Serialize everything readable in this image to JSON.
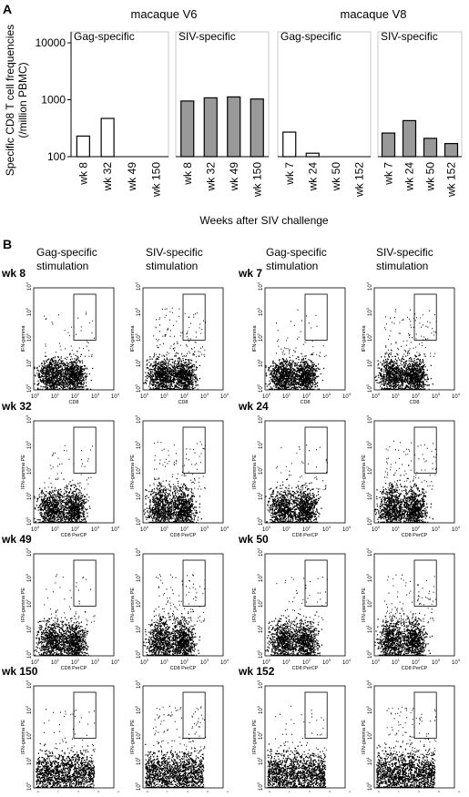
{
  "panel_a": {
    "label": "A",
    "groups": [
      "macaque V6",
      "macaque V8"
    ],
    "xlabel": "Weeks after SIV challenge"
  },
  "chart_data": [
    {
      "type": "bar",
      "title": "Gag-specific",
      "ylabel": [
        "Specific CD8 T cell frequencies",
        "(/million PBMC)"
      ],
      "categories": [
        "wk 8",
        "wk 32",
        "wk 49",
        "wk 150"
      ],
      "values": [
        230,
        470,
        null,
        null
      ],
      "color": "#ffffff",
      "log": true,
      "ylim": [
        100,
        10000
      ],
      "yticks": [
        100,
        1000,
        10000
      ]
    },
    {
      "type": "bar",
      "title": "SIV-specific",
      "categories": [
        "wk 8",
        "wk 32",
        "wk 49",
        "wk 150"
      ],
      "values": [
        950,
        1080,
        1120,
        1030
      ],
      "color": "#999999",
      "log": true,
      "ylim": [
        100,
        10000
      ]
    },
    {
      "type": "bar",
      "title": "Gag-specific",
      "categories": [
        "wk 7",
        "wk 24",
        "wk 50",
        "wk 152"
      ],
      "values": [
        270,
        115,
        null,
        null
      ],
      "color": "#ffffff",
      "log": true,
      "ylim": [
        100,
        10000
      ]
    },
    {
      "type": "bar",
      "title": "SIV-specific",
      "categories": [
        "wk 7",
        "wk 24",
        "wk 50",
        "wk 152"
      ],
      "values": [
        260,
        430,
        210,
        170
      ],
      "color": "#999999",
      "log": true,
      "ylim": [
        100,
        10000
      ]
    }
  ],
  "panel_b": {
    "label": "B",
    "columns": [
      [
        "Gag-specific",
        "stimulation"
      ],
      [
        "SIV-specific",
        "stimulation"
      ],
      [
        "Gag-specific",
        "stimulation"
      ],
      [
        "SIV-specific",
        "stimulation"
      ]
    ],
    "rows_left": [
      "wk 8",
      "wk 32",
      "wk 49",
      "wk 150"
    ],
    "rows_right": [
      "wk 7",
      "wk 24",
      "wk 50",
      "wk 152"
    ],
    "axis_labels": [
      {
        "x": "CD8",
        "y": "IFN-gamma"
      },
      {
        "x": "CD8 PerCP",
        "y": "IFN-gamma PE"
      },
      {
        "x": "CD8 PerCP",
        "y": "IFN-gamma PE"
      },
      {
        "x": "CD8 PerCP",
        "y": "IFN-gamma PE"
      }
    ],
    "tick_base": "10",
    "tick_exponents": [
      "0",
      "1",
      "2",
      "3",
      "4"
    ]
  }
}
